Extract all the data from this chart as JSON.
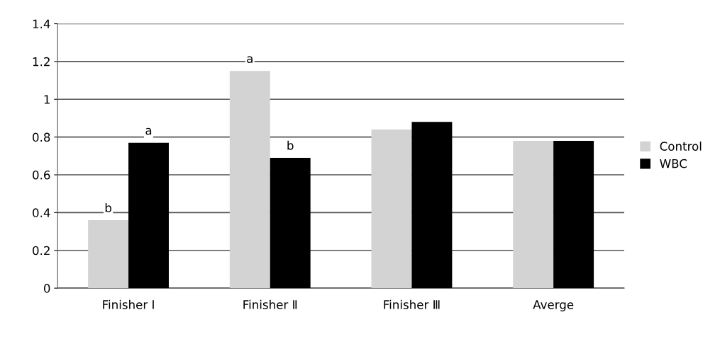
{
  "chart_data": {
    "type": "bar",
    "categories": [
      "Finisher Ⅰ",
      "Finisher Ⅱ",
      "Finisher Ⅲ",
      "Averge"
    ],
    "series": [
      {
        "name": "Control",
        "color": "#d3d3d3",
        "values": [
          0.36,
          1.15,
          0.84,
          0.78
        ]
      },
      {
        "name": "WBC",
        "color": "#000000",
        "values": [
          0.77,
          0.69,
          0.88,
          0.78
        ]
      }
    ],
    "ylim": [
      0,
      1.4
    ],
    "yticks": [
      0,
      0.2,
      0.4,
      0.6,
      0.8,
      1,
      1.2,
      1.4
    ],
    "grid": "y",
    "legend": "right",
    "annotations": [
      {
        "text": "b",
        "x": "Finisher Ⅰ",
        "y": 0.36
      },
      {
        "text": "a",
        "x": "Finisher Ⅰ",
        "y": 0.77
      },
      {
        "text": "a",
        "x": "Finisher Ⅱ",
        "y": 1.15
      },
      {
        "text": "b",
        "x": "Finisher Ⅱ",
        "y": 0.69
      }
    ]
  }
}
